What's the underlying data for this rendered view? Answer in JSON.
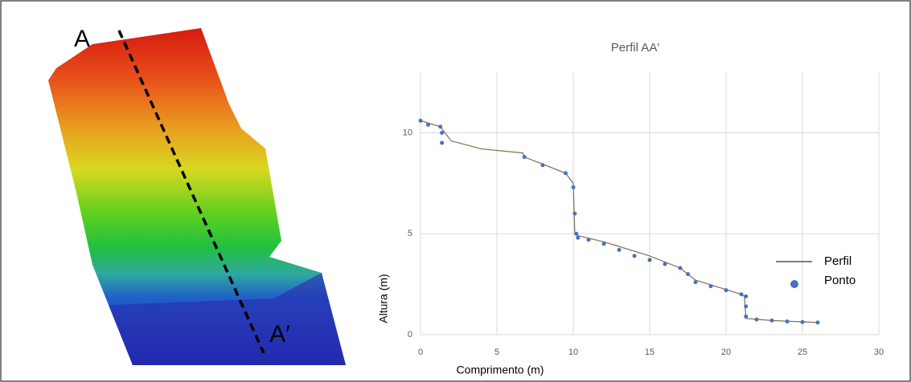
{
  "image_labels": {
    "start": "A",
    "end": "A′"
  },
  "chart_data": {
    "type": "scatter",
    "title": "Perfil AA'",
    "x_label": "Comprimento (m)",
    "y_label": "Altura (m)",
    "xlim": [
      0,
      30
    ],
    "xticks": [
      0,
      5,
      10,
      15,
      20,
      25,
      30
    ],
    "ylim": [
      0,
      13
    ],
    "yticks": [
      0,
      5,
      10
    ],
    "grid": true,
    "legend": "right",
    "series": [
      {
        "name": "Perfil",
        "type": "line",
        "color": "#7f6f50",
        "x": [
          0,
          1.3,
          2,
          4,
          6.7,
          6.8,
          9.5,
          10,
          10.1,
          10.3,
          12,
          15,
          17,
          18,
          21,
          21.2,
          21.3,
          23,
          26
        ],
        "values": [
          10.6,
          10.3,
          9.6,
          9.2,
          9.0,
          8.8,
          8.0,
          7.5,
          5.0,
          4.9,
          4.6,
          3.9,
          3.3,
          2.7,
          2.0,
          1.9,
          0.8,
          0.7,
          0.6
        ]
      },
      {
        "name": "Ponto",
        "type": "scatter",
        "color": "#4472c4",
        "x": [
          0,
          0.5,
          1.3,
          1.4,
          1.4,
          6.8,
          8,
          9.5,
          10,
          10.1,
          10.2,
          10.3,
          11,
          12,
          13,
          14,
          15,
          16,
          17,
          17.5,
          18,
          19,
          20,
          21,
          21.3,
          21.3,
          21.3,
          22,
          23,
          24,
          25,
          26
        ],
        "values": [
          10.6,
          10.4,
          10.3,
          10.0,
          9.5,
          8.8,
          8.4,
          8.0,
          7.3,
          6.0,
          5.0,
          4.8,
          4.7,
          4.5,
          4.2,
          3.9,
          3.7,
          3.5,
          3.3,
          3.0,
          2.6,
          2.4,
          2.2,
          2.0,
          1.9,
          1.4,
          0.9,
          0.75,
          0.7,
          0.65,
          0.62,
          0.6
        ]
      }
    ]
  }
}
